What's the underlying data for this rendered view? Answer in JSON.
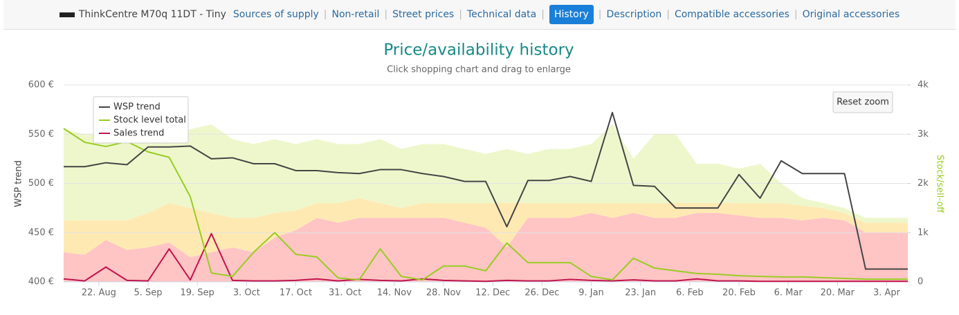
{
  "nav": {
    "product": "ThinkCentre M70q 11DT - Tiny",
    "links": [
      "Sources of supply",
      "Non-retail",
      "Street prices",
      "Technical data",
      "History",
      "Description",
      "Compatible accessories",
      "Original accessories"
    ],
    "active": "History"
  },
  "chart_data": {
    "type": "line",
    "title": "Price/availability history",
    "subtitle": "Click shopping chart and drag to enlarge",
    "reset_zoom": "Reset zoom",
    "y_label": "WSP trend",
    "y2_label": "Stock/sell-off",
    "grid": true,
    "legend": "top-left",
    "xlim": [
      0,
      240
    ],
    "xticks": [
      {
        "value": 10,
        "label": "22. Aug"
      },
      {
        "value": 24,
        "label": "5. Sep"
      },
      {
        "value": 38,
        "label": "19. Sep"
      },
      {
        "value": 52,
        "label": "3. Oct"
      },
      {
        "value": 66,
        "label": "17. Oct"
      },
      {
        "value": 80,
        "label": "31. Oct"
      },
      {
        "value": 94,
        "label": "14. Nov"
      },
      {
        "value": 108,
        "label": "28. Nov"
      },
      {
        "value": 122,
        "label": "12. Dec"
      },
      {
        "value": 136,
        "label": "26. Dec"
      },
      {
        "value": 150,
        "label": "9. Jan"
      },
      {
        "value": 164,
        "label": "23. Jan"
      },
      {
        "value": 178,
        "label": "6. Feb"
      },
      {
        "value": 192,
        "label": "20. Feb"
      },
      {
        "value": 206,
        "label": "6. Mar"
      },
      {
        "value": 220,
        "label": "20. Mar"
      },
      {
        "value": 234,
        "label": "3. Apr"
      }
    ],
    "ylim": [
      400,
      600
    ],
    "yticks": [
      {
        "value": 400,
        "label": "400 €"
      },
      {
        "value": 450,
        "label": "450 €"
      },
      {
        "value": 500,
        "label": "500 €"
      },
      {
        "value": 550,
        "label": "550 €"
      },
      {
        "value": 600,
        "label": "600 €"
      }
    ],
    "y2lim": [
      0,
      4000
    ],
    "y2ticks": [
      0,
      {
        "value": 1000,
        "label": "1k"
      },
      {
        "value": 2000,
        "label": "2k"
      },
      {
        "value": 3000,
        "label": "3k"
      },
      {
        "value": 4000,
        "label": "4k"
      }
    ],
    "x": [
      0,
      6,
      12,
      18,
      24,
      30,
      36,
      42,
      48,
      54,
      60,
      66,
      72,
      78,
      84,
      90,
      96,
      102,
      108,
      114,
      120,
      126,
      132,
      138,
      144,
      150,
      156,
      162,
      168,
      174,
      180,
      186,
      192,
      198,
      204,
      210,
      216,
      222,
      228,
      234,
      240
    ],
    "areas": [
      {
        "color": "#ffc4c4",
        "values": [
          600,
          550,
          850,
          650,
          700,
          800,
          500,
          600,
          700,
          600,
          900,
          1050,
          1300,
          1200,
          1300,
          1300,
          1300,
          1300,
          1300,
          1200,
          1100,
          700,
          1300,
          1300,
          1300,
          1400,
          1300,
          1400,
          1300,
          1300,
          1400,
          1400,
          1350,
          1300,
          1300,
          1250,
          1300,
          1250,
          1000,
          1000,
          1000
        ]
      },
      {
        "color": "#ffe9b3",
        "values": [
          650,
          700,
          400,
          600,
          700,
          800,
          1000,
          800,
          600,
          700,
          500,
          400,
          300,
          400,
          400,
          300,
          200,
          300,
          300,
          400,
          500,
          900,
          300,
          300,
          300,
          200,
          300,
          200,
          300,
          300,
          200,
          200,
          250,
          300,
          300,
          300,
          200,
          150,
          200,
          200,
          200
        ]
      },
      {
        "color": "#eef7cc",
        "values": [
          1850,
          1750,
          1750,
          1950,
          1750,
          1500,
          1600,
          1800,
          1600,
          1500,
          1500,
          1350,
          1300,
          1200,
          1100,
          1300,
          1200,
          1200,
          1200,
          1100,
          1000,
          1100,
          1000,
          1100,
          1100,
          1200,
          1600,
          900,
          1400,
          1400,
          800,
          800,
          700,
          800,
          400,
          150,
          100,
          100,
          100,
          100,
          100
        ]
      }
    ],
    "series": [
      {
        "name": "WSP trend",
        "color": "#444444",
        "axis": "y",
        "values": [
          517,
          517,
          521,
          519,
          537,
          537,
          538,
          525,
          526,
          520,
          520,
          513,
          513,
          511,
          510,
          514,
          514,
          510,
          507,
          502,
          502,
          456,
          503,
          503,
          507,
          502,
          572,
          498,
          497,
          475,
          475,
          475,
          509,
          485,
          523,
          510,
          510,
          510,
          413,
          413,
          413
        ]
      },
      {
        "name": "Stock level total",
        "color": "#99cc22",
        "axis": "y2",
        "values": [
          3116,
          2835,
          2750,
          2850,
          2640,
          2530,
          1730,
          180,
          110,
          600,
          1000,
          560,
          505,
          80,
          40,
          670,
          110,
          40,
          320,
          320,
          225,
          790,
          390,
          390,
          390,
          110,
          40,
          480,
          280,
          225,
          170,
          155,
          125,
          110,
          100,
          100,
          85,
          70,
          55,
          55,
          55
        ]
      },
      {
        "name": "Sales trend",
        "color": "#c0144c",
        "axis": "y2",
        "values": [
          60,
          20,
          300,
          30,
          20,
          670,
          40,
          980,
          30,
          20,
          20,
          30,
          60,
          20,
          50,
          30,
          20,
          60,
          30,
          20,
          10,
          30,
          20,
          20,
          50,
          30,
          20,
          40,
          20,
          20,
          60,
          20,
          20,
          10,
          10,
          10,
          10,
          10,
          10,
          10,
          10
        ]
      }
    ]
  }
}
